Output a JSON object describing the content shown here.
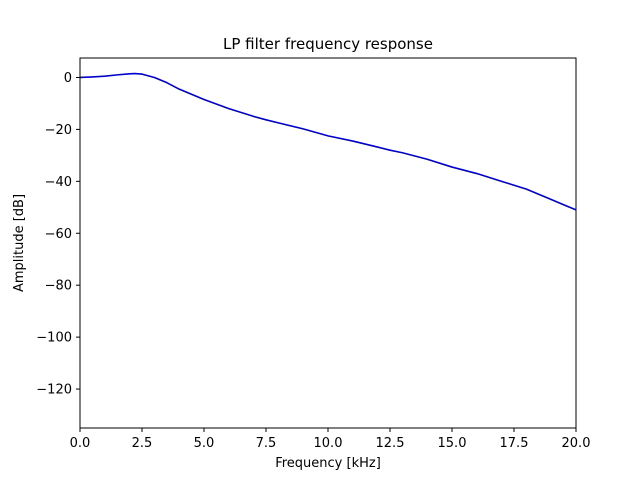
{
  "chart_data": {
    "type": "line",
    "title": "LP filter frequency response",
    "xlabel": "Frequency [kHz]",
    "ylabel": "Amplitude [dB]",
    "xlim": [
      0,
      20
    ],
    "ylim": [
      -135,
      7.5
    ],
    "xticks": [
      0,
      2.5,
      5,
      7.5,
      10,
      12.5,
      15,
      17.5,
      20
    ],
    "xtick_labels": [
      "0.0",
      "2.5",
      "5.0",
      "7.5",
      "10.0",
      "12.5",
      "15.0",
      "17.5",
      "20.0"
    ],
    "yticks": [
      0,
      -20,
      -40,
      -60,
      -80,
      -100,
      -120
    ],
    "ytick_labels": [
      "0",
      "−20",
      "−40",
      "−60",
      "−80",
      "−100",
      "−120"
    ],
    "grid": false,
    "series": [
      {
        "color": "#0000cc",
        "x": [
          0,
          0.5,
          1.0,
          1.5,
          2.0,
          2.2,
          2.5,
          3.0,
          3.5,
          4.0,
          5.0,
          6.0,
          7.0,
          7.5,
          8.0,
          9.0,
          10.0,
          11.0,
          12.0,
          12.5,
          13.0,
          14.0,
          15.0,
          16.0,
          17.0,
          17.5,
          18.0,
          19.0,
          19.5,
          20.0
        ],
        "y": [
          0,
          0.2,
          0.5,
          1.0,
          1.4,
          1.5,
          1.3,
          0.0,
          -2.0,
          -4.5,
          -8.5,
          -12.0,
          -15.0,
          -16.3,
          -17.5,
          -19.8,
          -22.5,
          -24.5,
          -26.8,
          -28.0,
          -29.0,
          -31.5,
          -34.5,
          -37.0,
          -40.0,
          -41.5,
          -43.0,
          -47.0,
          -49.0,
          -51.0
        ]
      }
    ]
  }
}
